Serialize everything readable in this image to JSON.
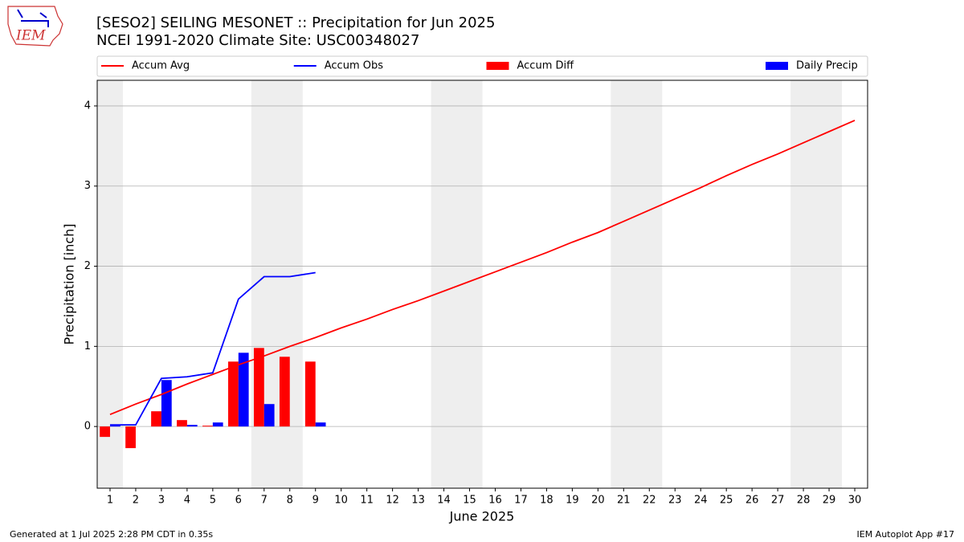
{
  "logo_text": "IEM",
  "footer": {
    "left": "Generated at 1 Jul 2025 2:28 PM CDT in 0.35s",
    "right": "IEM Autoplot App #17"
  },
  "chart_data": {
    "type": "combo",
    "title": "[SESO2] SEILING MESONET :: Precipitation for Jun 2025",
    "subtitle": "NCEI 1991-2020 Climate Site: USC00348027",
    "xlabel": "June 2025",
    "ylabel": "Precipitation [inch]",
    "x": [
      1,
      2,
      3,
      4,
      5,
      6,
      7,
      8,
      9,
      10,
      11,
      12,
      13,
      14,
      15,
      16,
      17,
      18,
      19,
      20,
      21,
      22,
      23,
      24,
      25,
      26,
      27,
      28,
      29,
      30
    ],
    "xlim": [
      0.5,
      30.5
    ],
    "xticks": [
      1,
      2,
      3,
      4,
      5,
      6,
      7,
      8,
      9,
      10,
      11,
      12,
      13,
      14,
      15,
      16,
      17,
      18,
      19,
      20,
      21,
      22,
      23,
      24,
      25,
      26,
      27,
      28,
      29,
      30
    ],
    "ylim": [
      -0.77,
      4.32
    ],
    "yticks": [
      0,
      1,
      2,
      3,
      4
    ],
    "grid": true,
    "legend": "top",
    "shaded_spans": [
      [
        0.5,
        1.5
      ],
      [
        6.5,
        8.5
      ],
      [
        13.5,
        15.5
      ],
      [
        20.5,
        22.5
      ],
      [
        27.5,
        29.5
      ]
    ],
    "shade_color": "#eeeeee",
    "series": [
      {
        "name": "Accum Avg",
        "type": "line",
        "color": "#ff0000",
        "values": [
          0.15,
          0.28,
          0.4,
          0.53,
          0.65,
          0.77,
          0.88,
          1.0,
          1.11,
          1.23,
          1.34,
          1.46,
          1.57,
          1.69,
          1.81,
          1.93,
          2.05,
          2.17,
          2.3,
          2.42,
          2.56,
          2.7,
          2.84,
          2.98,
          3.13,
          3.27,
          3.4,
          3.54,
          3.68,
          3.82
        ]
      },
      {
        "name": "Accum Obs",
        "type": "line",
        "color": "#0000ff",
        "values": [
          0.02,
          0.02,
          0.6,
          0.62,
          0.67,
          1.59,
          1.87,
          1.87,
          1.92,
          null,
          null,
          null,
          null,
          null,
          null,
          null,
          null,
          null,
          null,
          null,
          null,
          null,
          null,
          null,
          null,
          null,
          null,
          null,
          null,
          null
        ]
      },
      {
        "name": "Accum Diff",
        "type": "bar",
        "color": "#ff0000",
        "values": [
          -0.13,
          -0.27,
          0.19,
          0.08,
          0.01,
          0.81,
          0.98,
          0.87,
          0.81,
          null,
          null,
          null,
          null,
          null,
          null,
          null,
          null,
          null,
          null,
          null,
          null,
          null,
          null,
          null,
          null,
          null,
          null,
          null,
          null,
          null
        ]
      },
      {
        "name": "Daily Precip",
        "type": "bar",
        "color": "#0000ff",
        "values": [
          0.02,
          0.0,
          0.58,
          0.02,
          0.05,
          0.92,
          0.28,
          0.0,
          0.05,
          null,
          null,
          null,
          null,
          null,
          null,
          null,
          null,
          null,
          null,
          null,
          null,
          null,
          null,
          null,
          null,
          null,
          null,
          null,
          null,
          null
        ]
      }
    ]
  }
}
